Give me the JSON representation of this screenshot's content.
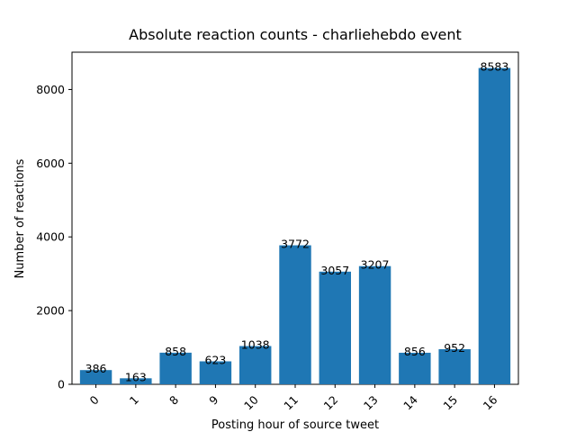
{
  "chart_data": {
    "type": "bar",
    "title": "Absolute reaction counts - charliehebdo event",
    "xlabel": "Posting hour of source tweet",
    "ylabel": "Number of reactions",
    "categories": [
      "0",
      "1",
      "8",
      "9",
      "10",
      "11",
      "12",
      "13",
      "14",
      "15",
      "16"
    ],
    "values": [
      386,
      163,
      858,
      623,
      1038,
      3772,
      3057,
      3207,
      856,
      952,
      8583
    ],
    "ylim": [
      0,
      9012
    ],
    "yticks": [
      0,
      2000,
      4000,
      6000,
      8000
    ],
    "grid": false,
    "legend": "none",
    "bar_color": "#1f77b4",
    "x_tick_rotation": "45°"
  }
}
